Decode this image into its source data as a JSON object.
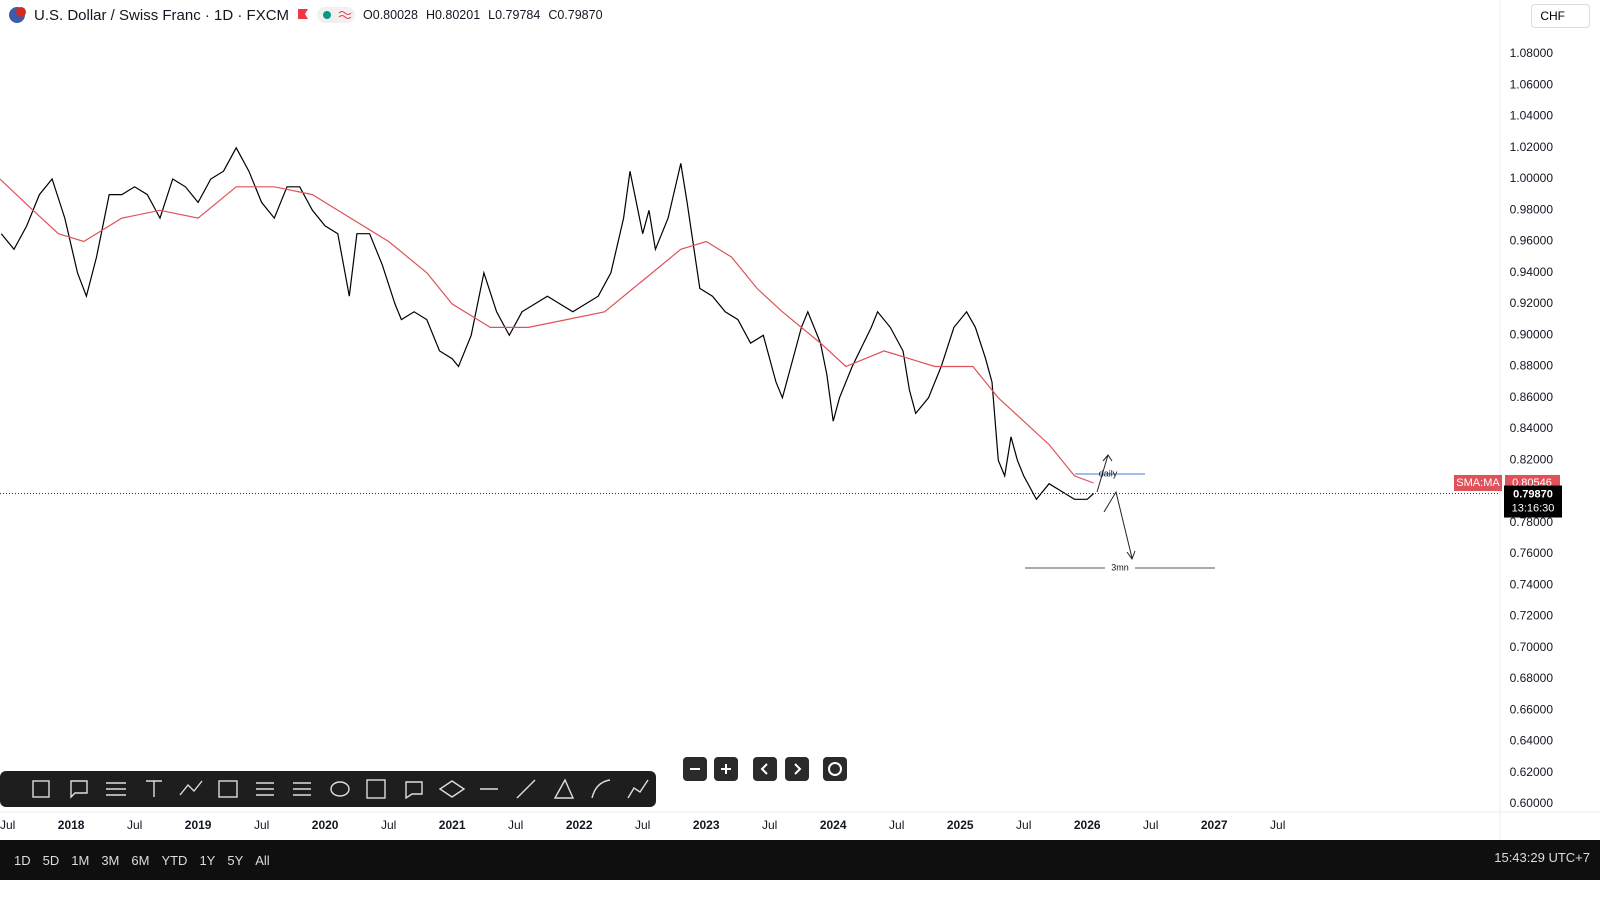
{
  "header": {
    "title": "U.S. Dollar / Swiss Franc · 1D · FXCM",
    "ohlc": [
      "O0.80028",
      "H0.80201",
      "L0.79784",
      "C0.79870"
    ],
    "currency": "CHF"
  },
  "bottom_bar": {
    "ranges": [
      "1D",
      "5D",
      "1M",
      "3M",
      "6M",
      "YTD",
      "1Y",
      "5Y",
      "All"
    ],
    "clock": "15:43:29 UTC+7"
  },
  "chart_data": {
    "type": "line",
    "series": [
      {
        "name": "USD/CHF",
        "color": "#000000",
        "x": [
          2017.45,
          2017.55,
          2017.65,
          2017.75,
          2017.85,
          2017.95,
          2018.05,
          2018.12,
          2018.2,
          2018.3,
          2018.4,
          2018.5,
          2018.6,
          2018.7,
          2018.8,
          2018.9,
          2019.0,
          2019.1,
          2019.2,
          2019.3,
          2019.4,
          2019.5,
          2019.6,
          2019.7,
          2019.8,
          2019.9,
          2020.0,
          2020.1,
          2020.19,
          2020.25,
          2020.35,
          2020.45,
          2020.55,
          2020.6,
          2020.7,
          2020.8,
          2020.9,
          2021.0,
          2021.05,
          2021.15,
          2021.25,
          2021.35,
          2021.45,
          2021.55,
          2021.65,
          2021.75,
          2021.85,
          2021.95,
          2022.05,
          2022.15,
          2022.25,
          2022.35,
          2022.4,
          2022.5,
          2022.55,
          2022.6,
          2022.7,
          2022.8,
          2022.85,
          2022.95,
          2023.05,
          2023.15,
          2023.25,
          2023.35,
          2023.45,
          2023.55,
          2023.6,
          2023.7,
          2023.75,
          2023.8,
          2023.9,
          2023.95,
          2024.0,
          2024.05,
          2024.15,
          2024.3,
          2024.35,
          2024.45,
          2024.55,
          2024.6,
          2024.65,
          2024.75,
          2024.85,
          2024.95,
          2025.05,
          2025.12,
          2025.2,
          2025.25,
          2025.3,
          2025.35,
          2025.4,
          2025.45,
          2025.5,
          2025.6,
          2025.7,
          2025.8,
          2025.9,
          2026.0,
          2026.05
        ],
        "values": [
          0.965,
          0.955,
          0.97,
          0.99,
          1.0,
          0.975,
          0.94,
          0.925,
          0.95,
          0.99,
          0.99,
          0.995,
          0.99,
          0.975,
          1.0,
          0.995,
          0.985,
          1.0,
          1.005,
          1.02,
          1.005,
          0.985,
          0.975,
          0.995,
          0.995,
          0.98,
          0.97,
          0.965,
          0.925,
          0.965,
          0.965,
          0.945,
          0.92,
          0.91,
          0.915,
          0.91,
          0.89,
          0.885,
          0.88,
          0.9,
          0.94,
          0.915,
          0.9,
          0.915,
          0.92,
          0.925,
          0.92,
          0.915,
          0.92,
          0.925,
          0.94,
          0.975,
          1.005,
          0.965,
          0.98,
          0.955,
          0.975,
          1.01,
          0.985,
          0.93,
          0.925,
          0.915,
          0.91,
          0.895,
          0.9,
          0.87,
          0.86,
          0.89,
          0.905,
          0.915,
          0.895,
          0.875,
          0.845,
          0.86,
          0.88,
          0.905,
          0.915,
          0.905,
          0.89,
          0.865,
          0.85,
          0.86,
          0.88,
          0.905,
          0.915,
          0.905,
          0.885,
          0.87,
          0.82,
          0.81,
          0.835,
          0.82,
          0.81,
          0.795,
          0.805,
          0.8,
          0.795,
          0.795,
          0.7987
        ]
      },
      {
        "name": "SMA:MA",
        "color": "#e0525a",
        "x": [
          2017.44,
          2017.7,
          2017.9,
          2018.1,
          2018.4,
          2018.7,
          2019.0,
          2019.3,
          2019.6,
          2019.9,
          2020.2,
          2020.5,
          2020.8,
          2021.0,
          2021.3,
          2021.6,
          2021.9,
          2022.2,
          2022.5,
          2022.8,
          2023.0,
          2023.2,
          2023.4,
          2023.6,
          2023.9,
          2024.1,
          2024.4,
          2024.6,
          2024.8,
          2025.1,
          2025.3,
          2025.5,
          2025.7,
          2025.9,
          2026.05
        ],
        "values": [
          1.0,
          0.98,
          0.965,
          0.96,
          0.975,
          0.98,
          0.975,
          0.995,
          0.995,
          0.99,
          0.975,
          0.96,
          0.94,
          0.92,
          0.905,
          0.905,
          0.91,
          0.915,
          0.935,
          0.955,
          0.96,
          0.95,
          0.93,
          0.915,
          0.895,
          0.88,
          0.89,
          0.885,
          0.88,
          0.88,
          0.86,
          0.845,
          0.83,
          0.81,
          0.80546
        ]
      }
    ],
    "xlim": [
      2017.44,
      2029.25
    ],
    "xticks": [
      {
        "value": 2017.5,
        "label": "Jul"
      },
      2018,
      {
        "value": 2018.5,
        "label": "Jul"
      },
      2019,
      {
        "value": 2019.5,
        "label": "Jul"
      },
      2020,
      {
        "value": 2020.5,
        "label": "Jul"
      },
      2021,
      {
        "value": 2021.5,
        "label": "Jul"
      },
      2022,
      {
        "value": 2022.5,
        "label": "Jul"
      },
      2023,
      {
        "value": 2023.5,
        "label": "Jul"
      },
      2024,
      {
        "value": 2024.5,
        "label": "Jul"
      },
      2025,
      {
        "value": 2025.5,
        "label": "Jul"
      },
      2026,
      {
        "value": 2026.5,
        "label": "Jul"
      },
      2027,
      {
        "value": 2027.5,
        "label": "Jul"
      }
    ],
    "ylim": [
      0.6,
      1.08
    ],
    "yticks": [
      {
        "value": 0.6,
        "label": "0.60000"
      },
      {
        "value": 0.62,
        "label": "0.62000"
      },
      {
        "value": 0.64,
        "label": "0.64000"
      },
      {
        "value": 0.66,
        "label": "0.66000"
      },
      {
        "value": 0.68,
        "label": "0.68000"
      },
      {
        "value": 0.7,
        "label": "0.70000"
      },
      {
        "value": 0.72,
        "label": "0.72000"
      },
      {
        "value": 0.74,
        "label": "0.74000"
      },
      {
        "value": 0.76,
        "label": "0.76000"
      },
      {
        "value": 0.78,
        "label": "0.78000"
      },
      {
        "value": 0.82,
        "label": "0.82000"
      },
      {
        "value": 0.84,
        "label": "0.84000"
      },
      {
        "value": 0.86,
        "label": "0.86000"
      },
      {
        "value": 0.88,
        "label": "0.88000"
      },
      {
        "value": 0.9,
        "label": "0.90000"
      },
      {
        "value": 0.92,
        "label": "0.92000"
      },
      {
        "value": 0.94,
        "label": "0.94000"
      },
      {
        "value": 0.96,
        "label": "0.96000"
      },
      {
        "value": 0.98,
        "label": "0.98000"
      },
      {
        "value": 1.0,
        "label": "1.00000"
      },
      {
        "value": 1.02,
        "label": "1.02000"
      },
      {
        "value": 1.04,
        "label": "1.04000"
      },
      {
        "value": 1.06,
        "label": "1.06000"
      },
      {
        "value": 1.08,
        "label": "1.08000"
      }
    ],
    "grid": false,
    "price_markers": [
      {
        "value": 0.80546,
        "label": "0.80546",
        "tag": "SMA:MA"
      },
      {
        "value": 0.7987,
        "label": "0.79870",
        "sub": "13:16:30"
      }
    ],
    "annotations": [
      "daily",
      "3mn"
    ]
  }
}
